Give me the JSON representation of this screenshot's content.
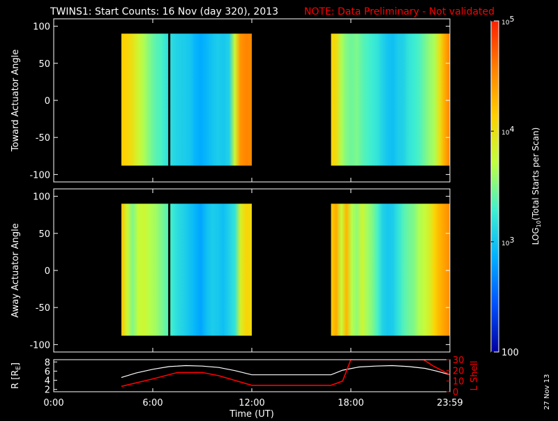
{
  "title": {
    "main": "TWINS1: Start Counts: 16 Nov (day 320), 2013",
    "note": "NOTE: Data Preliminary - Not validated"
  },
  "colors": {
    "background": "#000000",
    "axes": "#ffffff",
    "note": "#ff0000",
    "r_line": "#ffffff",
    "lshell_line": "#ff0000",
    "colormap": [
      "#0000a0",
      "#0050ff",
      "#00b0ff",
      "#40f0d0",
      "#c0ff40",
      "#ffd000",
      "#ff8000",
      "#ff2000"
    ]
  },
  "chart_data": [
    {
      "type": "heatmap",
      "ylabel": "Toward Actuator Angle",
      "ylim": [
        -110,
        110
      ],
      "yticks": [
        100,
        50,
        0,
        -50,
        -100
      ],
      "xlim": [
        0,
        24
      ],
      "xticks": [
        0,
        6,
        12,
        18,
        24
      ],
      "data_blocks": [
        {
          "x": [
            4.1,
            12.0
          ],
          "y": [
            -88,
            90
          ],
          "profile": [
            0.72,
            0.7,
            0.66,
            0.6,
            0.55,
            0.5,
            0.46,
            0.44,
            0.4,
            0.38,
            0.36,
            0.35,
            0.34,
            0.3,
            0.28,
            0.3,
            0.33,
            0.35,
            0.34,
            0.36,
            0.6,
            0.82,
            0.85,
            0.84
          ]
        },
        {
          "x": [
            16.8,
            24.0
          ],
          "y": [
            -88,
            90
          ],
          "profile": [
            0.7,
            0.68,
            0.55,
            0.5,
            0.48,
            0.5,
            0.46,
            0.44,
            0.42,
            0.4,
            0.36,
            0.33,
            0.32,
            0.35,
            0.36,
            0.4,
            0.42,
            0.44,
            0.48,
            0.52,
            0.55,
            0.66,
            0.78,
            0.86
          ]
        }
      ],
      "gap_line_x": 7.0
    },
    {
      "type": "heatmap",
      "ylabel": "Away Actuator Angle",
      "ylim": [
        -110,
        110
      ],
      "yticks": [
        100,
        50,
        0,
        -50,
        -100
      ],
      "xlim": [
        0,
        24
      ],
      "xticks": [
        0,
        6,
        12,
        18,
        24
      ],
      "data_blocks": [
        {
          "x": [
            4.1,
            12.0
          ],
          "y": [
            -88,
            90
          ],
          "profile": [
            0.74,
            0.6,
            0.5,
            0.58,
            0.6,
            0.56,
            0.54,
            0.5,
            0.46,
            0.42,
            0.38,
            0.36,
            0.33,
            0.3,
            0.27,
            0.32,
            0.35,
            0.34,
            0.32,
            0.36,
            0.4,
            0.62,
            0.7,
            0.68
          ]
        },
        {
          "x": [
            16.8,
            24.0
          ],
          "y": [
            -88,
            90
          ],
          "profile": [
            0.72,
            0.78,
            0.58,
            0.76,
            0.56,
            0.52,
            0.6,
            0.54,
            0.5,
            0.44,
            0.36,
            0.34,
            0.35,
            0.4,
            0.45,
            0.48,
            0.5,
            0.55,
            0.58,
            0.62,
            0.7,
            0.76,
            0.8,
            0.84
          ]
        }
      ],
      "gap_line_x": 7.0
    },
    {
      "type": "line",
      "ylabel": "R [R",
      "ylabel_sub": "E",
      "ylabel_end": "]",
      "ylabel_right": "L Shell",
      "ylim": [
        1.5,
        8.5
      ],
      "yticks": [
        8,
        6,
        4,
        2
      ],
      "y2lim": [
        0,
        30
      ],
      "y2ticks": [
        30,
        20,
        10,
        0
      ],
      "xlabel": "Time (UT)",
      "xticks": [
        0,
        6,
        12,
        18,
        24
      ],
      "xticklabels": [
        "0:00",
        "6:00",
        "12:00",
        "18:00",
        "23:59"
      ],
      "series": [
        {
          "axis": "left",
          "x": [
            4.1,
            5.0,
            6.0,
            7.0,
            8.0,
            9.0,
            10.0,
            11.0,
            12.0,
            13.0,
            14.0,
            15.0,
            16.8,
            17.5,
            18.5,
            19.5,
            20.5,
            21.5,
            22.5,
            23.2,
            24.0
          ],
          "y": [
            4.6,
            5.6,
            6.4,
            7.0,
            7.2,
            7.1,
            6.8,
            6.1,
            5.2,
            5.2,
            5.2,
            5.2,
            5.2,
            6.2,
            6.9,
            7.1,
            7.2,
            7.0,
            6.6,
            6.0,
            5.2
          ]
        },
        {
          "axis": "right",
          "x": [
            4.1,
            6.0,
            7.5,
            9.0,
            10.0,
            12.0,
            13.0,
            15.0,
            16.8,
            17.5,
            18.0,
            22.4,
            23.0,
            24.0
          ],
          "y": [
            5,
            12,
            18,
            18,
            15,
            6,
            6,
            6,
            6,
            10,
            30,
            30,
            24,
            16
          ]
        }
      ]
    }
  ],
  "colorbar": {
    "label_prefix": "LOG",
    "label_sub": "10",
    "label_rest": "(Total Starts per Scan)",
    "ticks": [
      {
        "base": "10",
        "exp": "5",
        "frac": 1.0
      },
      {
        "base": "10",
        "exp": "4",
        "frac": 0.667
      },
      {
        "base": "10",
        "exp": "3",
        "frac": 0.333
      },
      {
        "base": "100",
        "exp": "",
        "frac": 0.0
      }
    ]
  },
  "footer_date": "27 Nov 13"
}
